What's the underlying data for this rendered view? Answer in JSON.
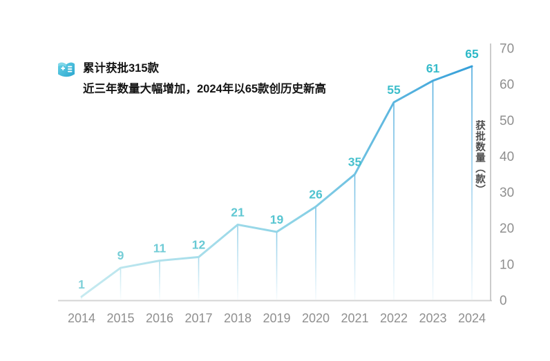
{
  "header": {
    "line1": "累计获批315款",
    "line2": "近三年数量大幅增加，2024年以65款创历史新高",
    "icon": "document-list-icon"
  },
  "chart_data": {
    "type": "line",
    "x": [
      "2014",
      "2015",
      "2016",
      "2017",
      "2018",
      "2019",
      "2020",
      "2021",
      "2022",
      "2023",
      "2024"
    ],
    "values": [
      1,
      9,
      11,
      12,
      21,
      19,
      26,
      35,
      55,
      61,
      65
    ],
    "title": "累计获批315款",
    "subtitle": "近三年数量大幅增加，2024年以65款创历史新高",
    "xlabel": "",
    "ylabel": "获批数量（款）",
    "ylim": [
      0,
      70
    ],
    "yticks": [
      0,
      10,
      20,
      30,
      40,
      50,
      60,
      70
    ],
    "grid": false,
    "legend": "none",
    "axis_side": "right",
    "markers": "none",
    "drop_lines": true,
    "colors": {
      "line_start": "#c6eaf0",
      "line_mid": "#8dd3e6",
      "line_end": "#359fd9",
      "label_start": "#7fd0d9",
      "label_end": "#2eb9c8",
      "axis": "#c6c6c6",
      "baseline": "#d4d4d4",
      "tick_text": "#8f8f8f",
      "ylabel_text": "#4d4d4d",
      "icon_top": "#55c8e0",
      "icon_bottom": "#2ba6cf"
    }
  }
}
